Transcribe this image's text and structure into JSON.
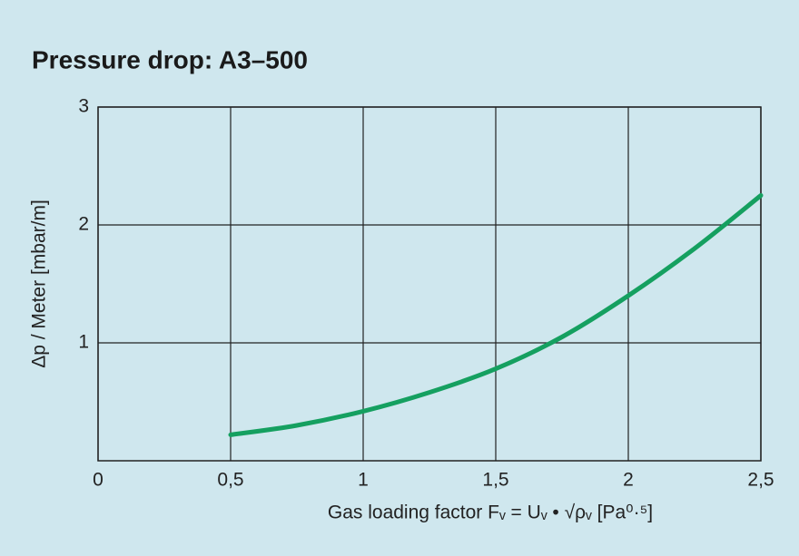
{
  "chart_data": {
    "type": "line",
    "title": "Pressure drop: A3–500",
    "x_label": "Gas loading factor Fᵥ = Uᵥ • √ρᵥ  [Pa⁰·⁵]",
    "y_label": "Δp / Meter [mbar/m]",
    "x": [
      0.5,
      0.75,
      1,
      1.25,
      1.5,
      1.75,
      2,
      2.25,
      2.5
    ],
    "series": [
      {
        "color": "#15a060",
        "values": [
          0.22,
          0.3,
          0.42,
          0.58,
          0.78,
          1.05,
          1.4,
          1.8,
          2.25
        ]
      }
    ],
    "xlim": [
      0,
      2.5
    ],
    "xticks": [
      0,
      {
        "value": 0.5,
        "label": "0,5"
      },
      1,
      {
        "value": 1.5,
        "label": "1,5"
      },
      2,
      {
        "value": 2.5,
        "label": "2,5"
      }
    ],
    "ylim": [
      0,
      3
    ],
    "yticks": [
      1,
      2,
      3
    ],
    "grid": true
  }
}
